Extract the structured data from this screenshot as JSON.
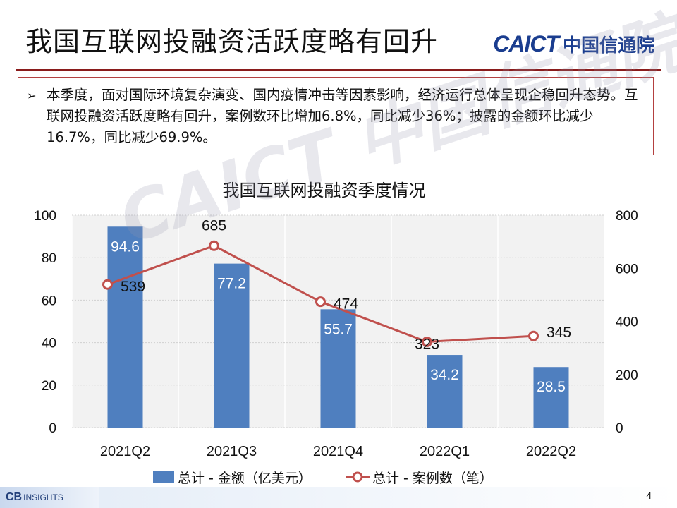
{
  "header": {
    "title": "我国互联网投融资活跃度略有回升",
    "logo_en": "CAICT",
    "logo_cn": "中国信通院"
  },
  "callout": {
    "bullet": "➢",
    "text": "本季度，面对国际环境复杂演变、国内疫情冲击等因素影响，经济运行总体呈现企稳回升态势。互联网投融资活跃度略有回升，案例数环比增加6.8%，同比减少36%；披露的金额环比减少 16.7%，同比减少69.9%。"
  },
  "watermark": "CAICT 中国信通院",
  "footer": {
    "brand": "CB",
    "brand_sub": "INSIGHTS",
    "page_number": "4"
  },
  "colors": {
    "bar": "#4f7fbf",
    "line": "#c0504d",
    "accent": "#8a1c1c"
  },
  "chart_data": {
    "type": "bar",
    "title": "我国互联网投融资季度情况",
    "categories": [
      "2021Q2",
      "2021Q3",
      "2021Q4",
      "2022Q1",
      "2022Q2"
    ],
    "series": [
      {
        "name": "总计 - 金额（亿美元）",
        "type": "bar",
        "axis": "left",
        "values": [
          94.6,
          77.2,
          55.7,
          34.2,
          28.5
        ]
      },
      {
        "name": "总计 - 案例数（笔）",
        "type": "line",
        "axis": "right",
        "values": [
          539,
          685,
          474,
          323,
          345
        ]
      }
    ],
    "y_left": {
      "min": 0,
      "max": 100,
      "ticks": [
        "0",
        "20",
        "40",
        "60",
        "80",
        "100"
      ]
    },
    "y_right": {
      "min": 0,
      "max": 800,
      "ticks": [
        "0",
        "200",
        "400",
        "600",
        "800"
      ]
    },
    "grid": true,
    "legend": "bottom"
  }
}
